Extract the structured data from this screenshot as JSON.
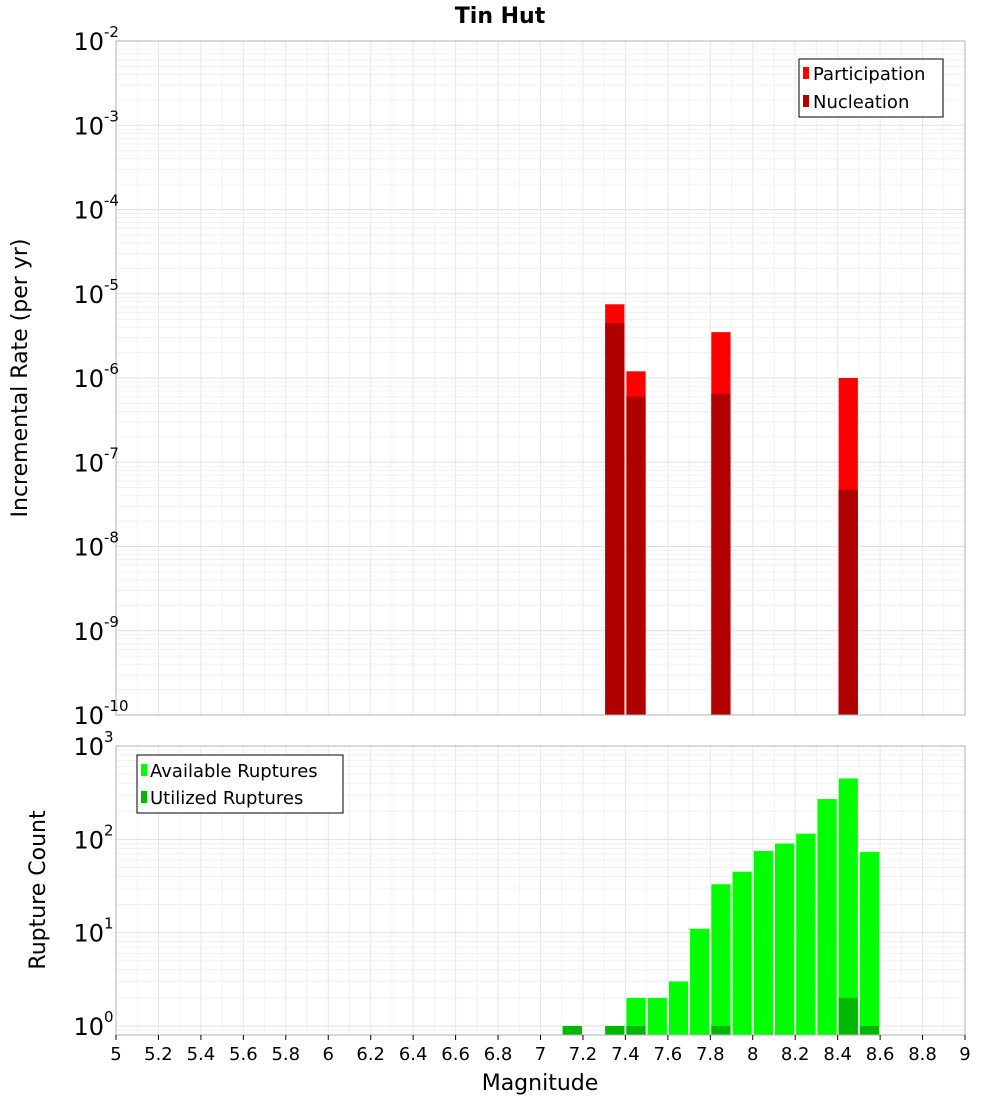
{
  "chart_data": [
    {
      "type": "bar",
      "title": "Tin Hut",
      "ylabel": "Incremental Rate (per yr)",
      "xlabel": "",
      "yscale": "log",
      "ylim": [
        1e-10,
        0.01
      ],
      "xlim": [
        5,
        9
      ],
      "bin_width": 0.1,
      "legend": {
        "placement": "top-right"
      },
      "series": [
        {
          "name": "Participation",
          "color": "#ff0000",
          "x": [
            7.35,
            7.45,
            7.85,
            8.45
          ],
          "values": [
            7.5e-06,
            1.2e-06,
            3.5e-06,
            1e-06
          ]
        },
        {
          "name": "Nucleation",
          "color": "#b00000",
          "x": [
            7.35,
            7.45,
            7.85,
            8.45
          ],
          "values": [
            4.5e-06,
            6e-07,
            6.5e-07,
            4.7e-08
          ]
        }
      ],
      "ytick_labels": [
        {
          "value": 0.01,
          "base": "10",
          "exp": "-2"
        },
        {
          "value": 0.001,
          "base": "10",
          "exp": "-3"
        },
        {
          "value": 0.0001,
          "base": "10",
          "exp": "-4"
        },
        {
          "value": 1e-05,
          "base": "10",
          "exp": "-5"
        },
        {
          "value": 1e-06,
          "base": "10",
          "exp": "-6"
        },
        {
          "value": 1e-07,
          "base": "10",
          "exp": "-7"
        },
        {
          "value": 1e-08,
          "base": "10",
          "exp": "-8"
        },
        {
          "value": 1e-09,
          "base": "10",
          "exp": "-9"
        },
        {
          "value": 1e-10,
          "base": "10",
          "exp": "-10"
        }
      ]
    },
    {
      "type": "bar",
      "title": "",
      "ylabel": "Rupture Count",
      "xlabel": "Magnitude",
      "yscale": "log",
      "ylim": [
        0.8,
        1000
      ],
      "xlim": [
        5,
        9
      ],
      "bin_width": 0.1,
      "legend": {
        "placement": "top-left"
      },
      "series": [
        {
          "name": "Available Ruptures",
          "color": "#00ff00",
          "x": [
            7.15,
            7.35,
            7.45,
            7.55,
            7.65,
            7.75,
            7.85,
            7.95,
            8.05,
            8.15,
            8.25,
            8.35,
            8.45,
            8.55
          ],
          "values": [
            1,
            1,
            2,
            2,
            3,
            11,
            33,
            45,
            75,
            90,
            115,
            270,
            450,
            73
          ]
        },
        {
          "name": "Utilized Ruptures",
          "color": "#00b800",
          "x": [
            7.15,
            7.35,
            7.45,
            7.85,
            8.45,
            8.55
          ],
          "values": [
            1,
            1,
            1,
            1,
            2,
            1
          ]
        }
      ],
      "ytick_labels": [
        {
          "value": 1000,
          "base": "10",
          "exp": "3"
        },
        {
          "value": 100,
          "base": "10",
          "exp": "2"
        },
        {
          "value": 10,
          "base": "10",
          "exp": "1"
        },
        {
          "value": 1,
          "base": "10",
          "exp": "0"
        }
      ],
      "xtick_labels": [
        "5",
        "5.2",
        "5.4",
        "5.6",
        "5.8",
        "6",
        "6.2",
        "6.4",
        "6.6",
        "6.8",
        "7",
        "7.2",
        "7.4",
        "7.6",
        "7.8",
        "8",
        "8.2",
        "8.4",
        "8.6",
        "8.8",
        "9"
      ]
    }
  ]
}
